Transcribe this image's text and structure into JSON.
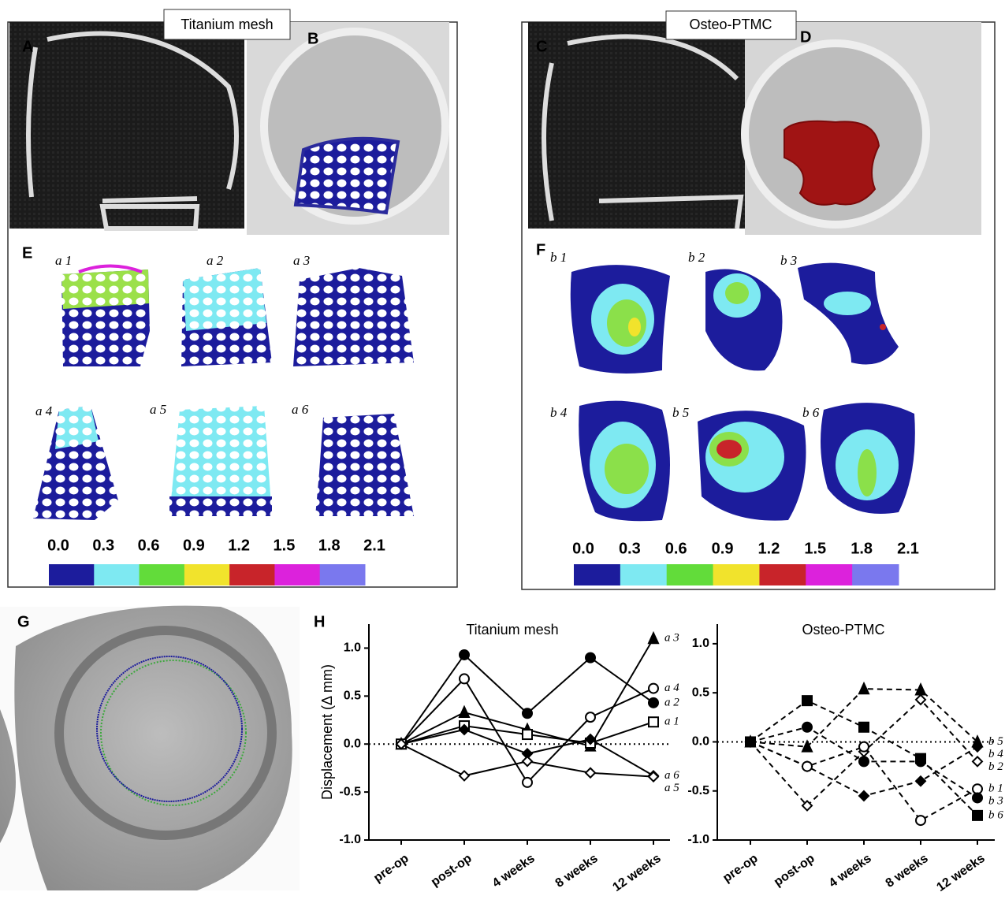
{
  "panel_labels": [
    "A",
    "B",
    "C",
    "D",
    "E",
    "F",
    "G",
    "H"
  ],
  "image_titles": [
    "Titanium mesh",
    "Osteo-PTMC"
  ],
  "mesh_labels": [
    "a 1",
    "a 2",
    "a 3",
    "a 4",
    "a 5",
    "a 6"
  ],
  "ptmc_labels": [
    "b 1",
    "b 2",
    "b 3",
    "b 4",
    "b 5",
    "b 6"
  ],
  "colorbars": [
    {
      "ticks": [
        {
          "value": 0,
          "label": "0.0"
        },
        {
          "value": 0.3,
          "label": "0.3"
        },
        {
          "value": 0.6,
          "label": "0.6"
        },
        {
          "value": 0.9,
          "label": "0.9"
        },
        {
          "value": 1.2,
          "label": "1.2"
        },
        {
          "value": 1.5,
          "label": "1.5"
        },
        {
          "value": 1.8,
          "label": "1.8"
        },
        {
          "value": 2.1,
          "label": "2.1"
        }
      ],
      "colors": [
        "#1c1c9c",
        "#7ee9f2",
        "#62dc3a",
        "#f1e32c",
        "#c8242a",
        "#dc22dc",
        "#7a78ee"
      ]
    },
    {
      "ticks": [
        {
          "value": 0,
          "label": "0.0"
        },
        {
          "value": 0.3,
          "label": "0.3"
        },
        {
          "value": 0.6,
          "label": "0.6"
        },
        {
          "value": 0.9,
          "label": "0.9"
        },
        {
          "value": 1.2,
          "label": "1.2"
        },
        {
          "value": 1.5,
          "label": "1.5"
        },
        {
          "value": 1.8,
          "label": "1.8"
        },
        {
          "value": 2.1,
          "label": "2.1"
        }
      ],
      "colors": [
        "#1c1c9c",
        "#7ee9f2",
        "#62dc3a",
        "#f1e32c",
        "#c8242a",
        "#dc22dc",
        "#7a78ee"
      ]
    }
  ],
  "chart_data": [
    {
      "type": "line",
      "title": "Titanium mesh",
      "ylabel": "Displacement (Δ mm)",
      "categories": [
        "pre-op",
        "post-op",
        "4 weeks",
        "8 weeks",
        "12 weeks"
      ],
      "ylim": [
        -1.0,
        1.25
      ],
      "yticks": [
        {
          "value": -1,
          "label": "-1.0"
        },
        {
          "value": -0.5,
          "label": "-0.5"
        },
        {
          "value": 0,
          "label": "0.0"
        },
        {
          "value": 0.5,
          "label": "0.5"
        },
        {
          "value": 1,
          "label": "1.0"
        }
      ],
      "reference_line": 0,
      "line_style": "solid",
      "series": [
        {
          "name": "a 3",
          "color": "#000000",
          "marker": "filled-triangle",
          "values": [
            0,
            0.33,
            0.15,
            -0.02,
            1.1
          ]
        },
        {
          "name": "a 4",
          "color": "#000000",
          "marker": "open-circle",
          "values": [
            0,
            0.68,
            -0.4,
            0.28,
            0.58
          ]
        },
        {
          "name": "a 2",
          "color": "#000000",
          "marker": "filled-circle",
          "values": [
            0,
            0.93,
            0.32,
            0.9,
            0.43
          ]
        },
        {
          "name": "a 1",
          "color": "#000000",
          "marker": "open-square",
          "values": [
            0,
            0.19,
            0.1,
            0.01,
            0.23
          ]
        },
        {
          "name": "a 6",
          "color": "#000000",
          "marker": "filled-diamond",
          "values": [
            0,
            0.15,
            -0.1,
            0.05,
            -0.33
          ]
        },
        {
          "name": "a 5",
          "color": "#000000",
          "marker": "open-diamond",
          "values": [
            0,
            -0.33,
            -0.18,
            -0.3,
            -0.34
          ]
        }
      ]
    },
    {
      "type": "line",
      "title": "Osteo-PTMC",
      "categories": [
        "pre-op",
        "post-op",
        "4 weeks",
        "8 weeks",
        "12 weeks"
      ],
      "ylim": [
        -1.0,
        1.2
      ],
      "yticks": [
        {
          "value": -1,
          "label": "-1.0"
        },
        {
          "value": -0.5,
          "label": "-0.5"
        },
        {
          "value": 0,
          "label": "0.0"
        },
        {
          "value": 0.5,
          "label": "0.5"
        },
        {
          "value": 1,
          "label": "1.0"
        }
      ],
      "reference_line": 0,
      "line_style": "dashed",
      "series": [
        {
          "name": "b 5",
          "color": "#000000",
          "marker": "filled-triangle",
          "values": [
            0,
            -0.05,
            0.54,
            0.53,
            0.0
          ]
        },
        {
          "name": "b 4",
          "color": "#000000",
          "marker": "filled-diamond",
          "values": [
            0,
            -0.25,
            -0.55,
            -0.4,
            -0.05
          ]
        },
        {
          "name": "b 2",
          "color": "#000000",
          "marker": "open-diamond",
          "values": [
            0,
            -0.65,
            -0.1,
            0.43,
            -0.2
          ]
        },
        {
          "name": "b 1",
          "color": "#000000",
          "marker": "open-circle",
          "values": [
            0,
            -0.25,
            -0.05,
            -0.8,
            -0.48
          ]
        },
        {
          "name": "b 3",
          "color": "#000000",
          "marker": "filled-circle",
          "values": [
            0,
            0.15,
            -0.2,
            -0.2,
            -0.57
          ]
        },
        {
          "name": "b 6",
          "color": "#000000",
          "marker": "filled-square",
          "values": [
            0,
            0.42,
            0.15,
            -0.17,
            -0.75
          ]
        }
      ]
    }
  ]
}
